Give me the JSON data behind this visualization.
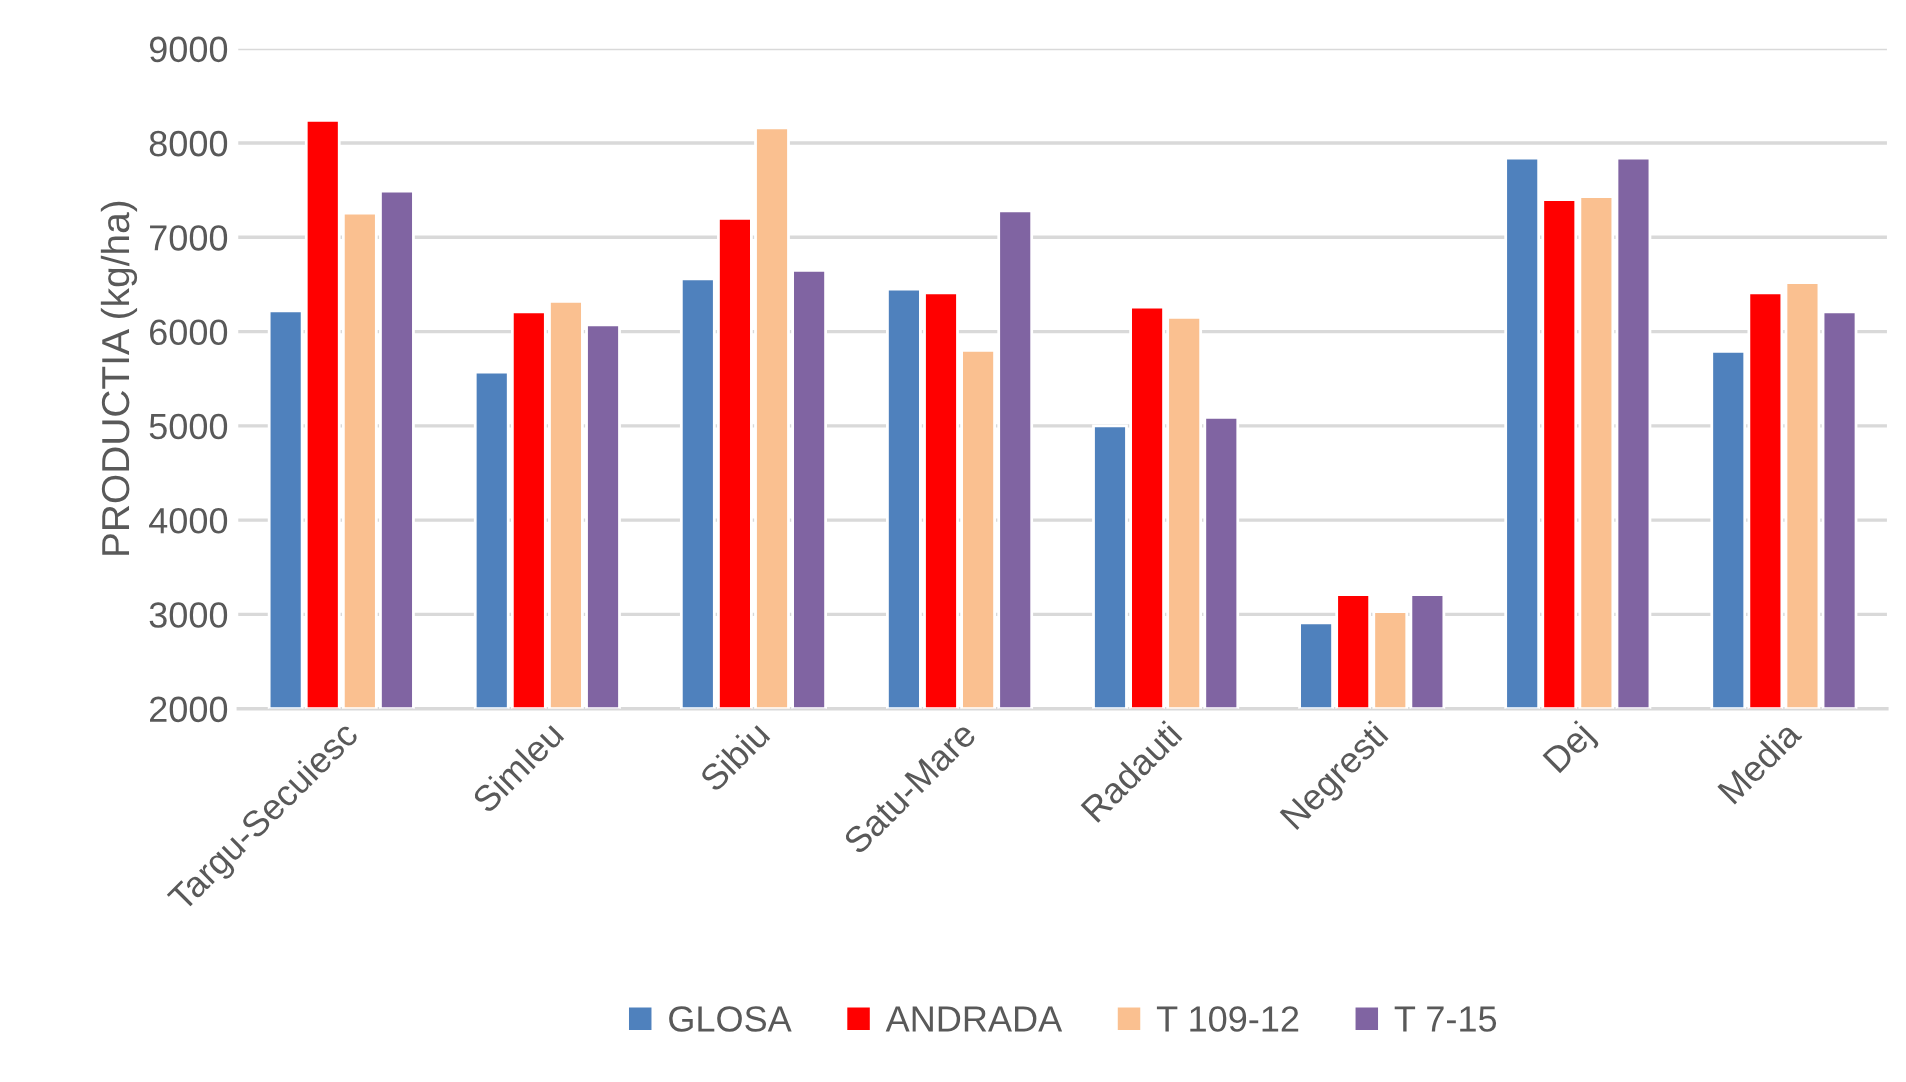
{
  "chart_data": {
    "type": "bar",
    "ylabel": "PRODUCTIA (kg/ha)",
    "categories": [
      "Targu-Secuiesc",
      "Simleu",
      "Sibiu",
      "Satu-Mare",
      "Radauti",
      "Negresti",
      "Dej",
      "Media"
    ],
    "series": [
      {
        "name": "GLOSA",
        "color": "#4f81bd",
        "values": [
          6220,
          5570,
          6560,
          6450,
          5000,
          2910,
          7840,
          5790
        ]
      },
      {
        "name": "ANDRADA",
        "color": "#ff0000",
        "values": [
          8240,
          6210,
          7200,
          6410,
          6260,
          3210,
          7400,
          6410
        ]
      },
      {
        "name": "T 109-12",
        "color": "#fac090",
        "values": [
          7255,
          6320,
          8160,
          5800,
          6150,
          3030,
          7430,
          6520
        ]
      },
      {
        "name": "T 7-15",
        "color": "#8064a2",
        "values": [
          7490,
          6070,
          6650,
          7280,
          5090,
          3210,
          7840,
          6210
        ]
      }
    ],
    "ylim": [
      2000,
      9000
    ],
    "yticks": [
      2000,
      3000,
      4000,
      5000,
      6000,
      7000,
      8000,
      9000
    ],
    "grid": "y",
    "legend": "bottom"
  }
}
